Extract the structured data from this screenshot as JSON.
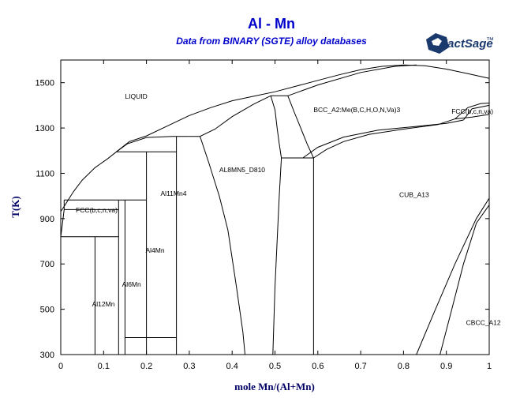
{
  "header": {
    "title": "Al - Mn",
    "subtitle": "Data from BINARY (SGTE) alloy databases"
  },
  "logo": {
    "text": "FactSage",
    "trademark": "™",
    "icon": "factsage-logo-icon",
    "color": "#1a3a6e"
  },
  "chart_data": {
    "type": "line",
    "title": "Al - Mn",
    "subtitle": "Data from BINARY (SGTE) alloy databases",
    "xlabel": "mole Mn/(Al+Mn)",
    "ylabel": "T(K)",
    "xlim": [
      0,
      1
    ],
    "ylim": [
      300,
      1600
    ],
    "x_ticks": [
      {
        "value": 0,
        "label": "0"
      },
      {
        "value": 0.1,
        "label": "0.1"
      },
      {
        "value": 0.2,
        "label": "0.2"
      },
      {
        "value": 0.3,
        "label": "0.3"
      },
      {
        "value": 0.4,
        "label": "0.4"
      },
      {
        "value": 0.5,
        "label": "0.5"
      },
      {
        "value": 0.6,
        "label": "0.6"
      },
      {
        "value": 0.7,
        "label": "0.7"
      },
      {
        "value": 0.8,
        "label": "0.8"
      },
      {
        "value": 0.9,
        "label": "0.9"
      },
      {
        "value": 1,
        "label": "1"
      }
    ],
    "y_ticks": [
      {
        "value": 300,
        "label": "300"
      },
      {
        "value": 500,
        "label": "500"
      },
      {
        "value": 700,
        "label": "700"
      },
      {
        "value": 900,
        "label": "900"
      },
      {
        "value": 1100,
        "label": "1100"
      },
      {
        "value": 1300,
        "label": "1300"
      },
      {
        "value": 1500,
        "label": "1500"
      }
    ],
    "grid": false,
    "phase_labels": [
      {
        "text": "LIQUID",
        "x": 0.15,
        "y": 1430
      },
      {
        "text": "BCC_A2:Me(B,C,H,O,N,Va)3",
        "x": 0.59,
        "y": 1370
      },
      {
        "text": "FCC(b,c,n,va)",
        "x": 0.912,
        "y": 1363
      },
      {
        "text": "AL8MN5_D810",
        "x": 0.37,
        "y": 1105
      },
      {
        "text": "Al11Mn4",
        "x": 0.233,
        "y": 1000
      },
      {
        "text": "CUB_A13",
        "x": 0.79,
        "y": 995
      },
      {
        "text": "FCC(b,c,n,va)",
        "x": 0.035,
        "y": 928
      },
      {
        "text": "Al4Mn",
        "x": 0.198,
        "y": 750
      },
      {
        "text": "Al6Mn",
        "x": 0.143,
        "y": 600
      },
      {
        "text": "Al12Mn",
        "x": 0.073,
        "y": 512
      },
      {
        "text": "CBCC_A12",
        "x": 0.946,
        "y": 430
      }
    ],
    "series": [
      {
        "points": [
          [
            0,
            932
          ],
          [
            0.005,
            945
          ],
          [
            0.015,
            975
          ],
          [
            0.03,
            1020
          ],
          [
            0.05,
            1070
          ],
          [
            0.08,
            1125
          ],
          [
            0.11,
            1165
          ],
          [
            0.13,
            1195
          ],
          [
            0.16,
            1240
          ],
          [
            0.2,
            1265
          ],
          [
            0.25,
            1310
          ],
          [
            0.3,
            1355
          ],
          [
            0.35,
            1390
          ],
          [
            0.4,
            1420
          ],
          [
            0.45,
            1440
          ],
          [
            0.5,
            1460
          ],
          [
            0.55,
            1485
          ],
          [
            0.6,
            1510
          ],
          [
            0.65,
            1535
          ],
          [
            0.7,
            1557
          ],
          [
            0.75,
            1572
          ],
          [
            0.8,
            1578
          ],
          [
            0.85,
            1575
          ],
          [
            0.9,
            1560
          ],
          [
            0.95,
            1540
          ],
          [
            1,
            1519
          ]
        ]
      },
      {
        "points": [
          [
            0.13,
            1195
          ],
          [
            0.155,
            1230
          ],
          [
            0.2,
            1258
          ],
          [
            0.26,
            1263
          ],
          [
            0.3,
            1263
          ]
        ]
      },
      {
        "points": [
          [
            0.3,
            1263
          ],
          [
            0.325,
            1263
          ],
          [
            0.36,
            1295
          ],
          [
            0.4,
            1350
          ],
          [
            0.45,
            1405
          ],
          [
            0.49,
            1442
          ]
        ]
      },
      {
        "points": [
          [
            0.49,
            1442
          ],
          [
            0.53,
            1442
          ],
          [
            0.6,
            1490
          ],
          [
            0.7,
            1545
          ],
          [
            0.78,
            1572
          ],
          [
            0.83,
            1578
          ]
        ]
      },
      {
        "points": [
          [
            0.49,
            1442
          ],
          [
            0.5,
            1380
          ],
          [
            0.505,
            1300
          ],
          [
            0.51,
            1230
          ],
          [
            0.515,
            1168
          ]
        ]
      },
      {
        "points": [
          [
            0.53,
            1442
          ],
          [
            0.545,
            1370
          ],
          [
            0.56,
            1300
          ],
          [
            0.575,
            1230
          ],
          [
            0.59,
            1168
          ]
        ]
      },
      {
        "points": [
          [
            0.515,
            1168
          ],
          [
            0.59,
            1168
          ]
        ]
      },
      {
        "points": [
          [
            0.59,
            1168
          ],
          [
            0.62,
            1205
          ],
          [
            0.66,
            1240
          ],
          [
            0.72,
            1272
          ],
          [
            0.8,
            1295
          ],
          [
            0.88,
            1315
          ],
          [
            0.92,
            1340
          ],
          [
            0.95,
            1390
          ],
          [
            0.98,
            1408
          ],
          [
            1,
            1410
          ]
        ]
      },
      {
        "points": [
          [
            0.565,
            1168
          ],
          [
            0.6,
            1215
          ],
          [
            0.66,
            1260
          ],
          [
            0.74,
            1290
          ],
          [
            0.82,
            1305
          ],
          [
            0.9,
            1320
          ],
          [
            0.94,
            1335
          ]
        ]
      },
      {
        "points": [
          [
            0.92,
            1340
          ],
          [
            0.96,
            1348
          ],
          [
            1,
            1360
          ]
        ]
      },
      {
        "points": [
          [
            0.94,
            1335
          ],
          [
            0.96,
            1385
          ],
          [
            1,
            1400
          ]
        ]
      },
      {
        "points": [
          [
            0.515,
            1168
          ],
          [
            0.51,
            1000
          ],
          [
            0.505,
            800
          ],
          [
            0.5,
            600
          ],
          [
            0.495,
            300
          ]
        ]
      },
      {
        "points": [
          [
            0.59,
            1168
          ],
          [
            0.59,
            300
          ]
        ]
      },
      {
        "points": [
          [
            0.325,
            1263
          ],
          [
            0.345,
            1150
          ],
          [
            0.37,
            1000
          ],
          [
            0.39,
            850
          ],
          [
            0.41,
            600
          ],
          [
            0.425,
            400
          ],
          [
            0.43,
            300
          ]
        ]
      },
      {
        "points": [
          [
            0.27,
            1263
          ],
          [
            0.27,
            300
          ]
        ]
      },
      {
        "points": [
          [
            0.13,
            1195
          ],
          [
            0.27,
            1195
          ]
        ]
      },
      {
        "points": [
          [
            0.2,
            1195
          ],
          [
            0.2,
            300
          ]
        ]
      },
      {
        "points": [
          [
            0.135,
            982
          ],
          [
            0.2,
            982
          ]
        ]
      },
      {
        "points": [
          [
            0.15,
            982
          ],
          [
            0.15,
            300
          ]
        ]
      },
      {
        "points": [
          [
            0.15,
            375
          ],
          [
            0.27,
            375
          ]
        ]
      },
      {
        "points": [
          [
            0.008,
            982
          ],
          [
            0.135,
            982
          ]
        ]
      },
      {
        "points": [
          [
            0.008,
            940
          ],
          [
            0.135,
            940
          ]
        ]
      },
      {
        "points": [
          [
            0,
            820
          ],
          [
            0.135,
            820
          ]
        ]
      },
      {
        "points": [
          [
            0.008,
            982
          ],
          [
            0.008,
            940
          ]
        ]
      },
      {
        "points": [
          [
            0.008,
            940
          ],
          [
            0.004,
            880
          ],
          [
            0,
            820
          ]
        ]
      },
      {
        "points": [
          [
            0.135,
            982
          ],
          [
            0.135,
            300
          ]
        ]
      },
      {
        "points": [
          [
            0.08,
            820
          ],
          [
            0.08,
            300
          ]
        ]
      },
      {
        "points": [
          [
            0,
            820
          ],
          [
            0,
            750
          ]
        ]
      },
      {
        "points": [
          [
            0.83,
            300
          ],
          [
            0.87,
            480
          ],
          [
            0.92,
            700
          ],
          [
            0.97,
            900
          ],
          [
            1,
            990
          ]
        ]
      },
      {
        "points": [
          [
            0.885,
            300
          ],
          [
            0.91,
            480
          ],
          [
            0.94,
            700
          ],
          [
            0.97,
            880
          ],
          [
            1,
            960
          ]
        ]
      }
    ]
  }
}
